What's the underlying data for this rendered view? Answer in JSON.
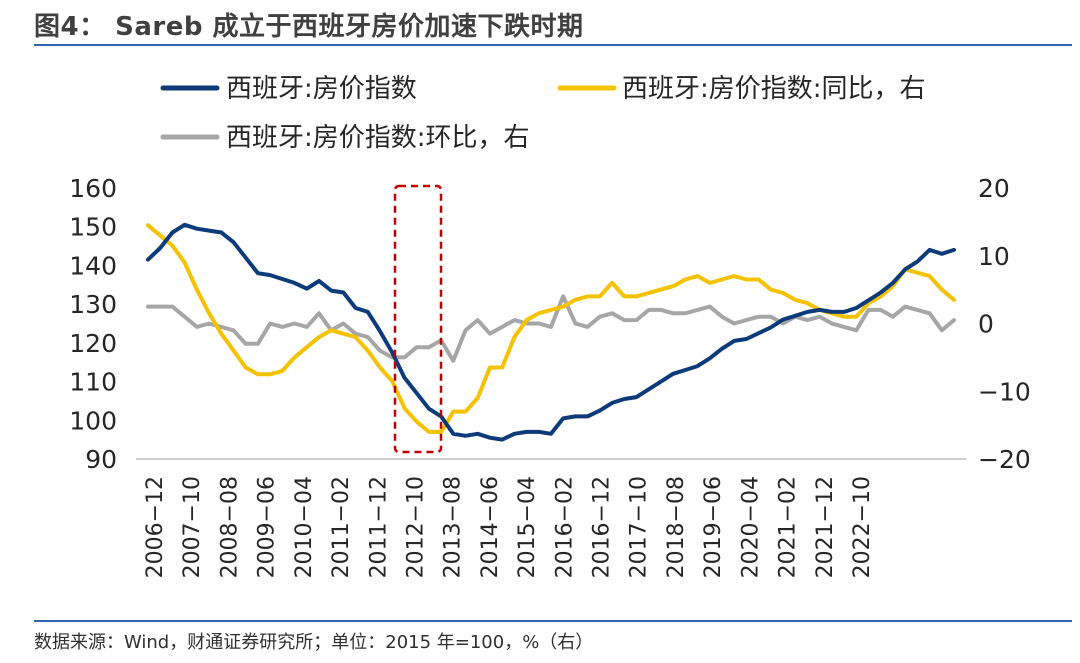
{
  "header": {
    "title": "图4： Sareb 成立于西班牙房价加速下跌时期"
  },
  "footer": {
    "source": "数据来源：Wind，财通证券研究所；单位：2015 年=100，%（右）"
  },
  "colors": {
    "index": "#0d3b7a",
    "yoy": "#f5c200",
    "mom": "#a6a6a6",
    "highlight": "#c00000",
    "rule": "#2b66b3"
  },
  "chart_data": {
    "type": "line",
    "title": "",
    "legend": [
      "西班牙:房价指数",
      "西班牙:房价指数:同比，右",
      "西班牙:房价指数:环比，右"
    ],
    "x_labels": [
      "2006-12",
      "2007-10",
      "2008-08",
      "2009-06",
      "2010-04",
      "2011-02",
      "2011-12",
      "2012-10",
      "2013-08",
      "2014-06",
      "2015-04",
      "2016-02",
      "2016-12",
      "2017-10",
      "2018-08",
      "2019-06",
      "2020-04",
      "2021-02",
      "2021-12",
      "2022-10"
    ],
    "left_axis": {
      "ticks": [
        90,
        100,
        110,
        120,
        130,
        140,
        150,
        160
      ],
      "ylim": [
        90,
        160
      ]
    },
    "right_axis": {
      "ticks": [
        -20,
        -10,
        0,
        10,
        20
      ],
      "ylim": [
        -20,
        20
      ]
    },
    "highlight_period": [
      "2011-12",
      "2012-10"
    ],
    "series": [
      {
        "name": "西班牙:房价指数",
        "axis": "left",
        "values": [
          141.5,
          144.5,
          148.5,
          150.5,
          149.5,
          149,
          148.5,
          146,
          142,
          138,
          137.5,
          136.5,
          135.5,
          134,
          136,
          133.5,
          133,
          129,
          128,
          123,
          117.5,
          111,
          107,
          103,
          101,
          96.5,
          96,
          96.5,
          95.5,
          95,
          96.5,
          97,
          97,
          96.5,
          100.5,
          101,
          101,
          102.5,
          104.5,
          105.5,
          106,
          108,
          110,
          112,
          113,
          114,
          116,
          118.5,
          120.5,
          121,
          122.5,
          124,
          126,
          127,
          128,
          128.5,
          128,
          128,
          129,
          131,
          133,
          135.5,
          139,
          141,
          144,
          143,
          144
        ]
      },
      {
        "name": "西班牙:房价指数:同比，右",
        "axis": "right",
        "values": [
          14.5,
          13,
          11.5,
          9,
          5,
          1.5,
          -1.5,
          -4,
          -6.5,
          -7.5,
          -7.5,
          -7,
          -5,
          -3.5,
          -2,
          -1,
          -1.5,
          -2,
          -4,
          -6.5,
          -8.5,
          -12.5,
          -14.5,
          -16,
          -16,
          -13,
          -13,
          -11,
          -6.5,
          -6.5,
          -2,
          0.5,
          1.5,
          2,
          2.5,
          3.5,
          4,
          4,
          6,
          4,
          4,
          4.5,
          5,
          5.5,
          6.5,
          7,
          6,
          6.5,
          7,
          6.5,
          6.5,
          5,
          4.5,
          3.5,
          3,
          2,
          1.5,
          1,
          1,
          3,
          4,
          5.5,
          8,
          7.5,
          7,
          5,
          3.5
        ]
      },
      {
        "name": "西班牙:房价指数:环比，右",
        "axis": "right",
        "values": [
          2.5,
          2.5,
          2.5,
          1,
          -0.5,
          0,
          -0.5,
          -1,
          -3,
          -3,
          0,
          -0.5,
          0,
          -0.5,
          1.5,
          -1,
          0,
          -1.5,
          -2,
          -4,
          -5,
          -5,
          -3.5,
          -3.5,
          -2.5,
          -5.5,
          -1,
          0.5,
          -1.5,
          -0.5,
          0.5,
          0,
          0,
          -0.5,
          4,
          0,
          -0.5,
          1,
          1.5,
          0.5,
          0.5,
          2,
          2,
          1.5,
          1.5,
          2,
          2.5,
          1,
          0,
          0.5,
          1,
          1,
          0,
          1,
          0.5,
          1,
          0,
          -0.5,
          -1,
          2,
          2,
          1,
          2.5,
          2,
          1.5,
          -1,
          0.5
        ]
      }
    ]
  }
}
